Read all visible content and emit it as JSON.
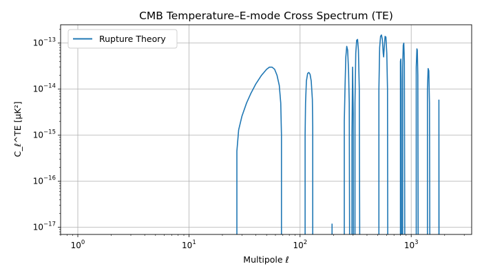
{
  "chart_data": {
    "type": "line",
    "title": "CMB Temperature–E-mode Cross Spectrum (TE)",
    "xlabel": "Multipole ℓ",
    "ylabel": "C_ℓ^TE [μK²]",
    "x_scale": "log",
    "y_scale": "log",
    "xlim": [
      0.7,
      3500
    ],
    "ylim": [
      7e-18,
      2.5e-13
    ],
    "grid": true,
    "legend_position": "top-left",
    "x_ticks": [
      {
        "value": 1,
        "base": "10",
        "exp": "0"
      },
      {
        "value": 10,
        "base": "10",
        "exp": "1"
      },
      {
        "value": 100,
        "base": "10",
        "exp": "2"
      },
      {
        "value": 1000,
        "base": "10",
        "exp": "3"
      }
    ],
    "y_ticks": [
      {
        "value": 1e-17,
        "base": "10",
        "exp": "−17"
      },
      {
        "value": 1e-16,
        "base": "10",
        "exp": "−16"
      },
      {
        "value": 1e-15,
        "base": "10",
        "exp": "−15"
      },
      {
        "value": 1e-14,
        "base": "10",
        "exp": "−14"
      },
      {
        "value": 1e-13,
        "base": "10",
        "exp": "−13"
      }
    ],
    "series": [
      {
        "name": "Rupture Theory",
        "color": "#1f77b4",
        "segments": [
          [
            [
              27,
              7e-18
            ],
            [
              27,
              4.5e-16
            ],
            [
              28,
              1.3e-15
            ],
            [
              30,
              2.6e-15
            ],
            [
              33,
              5e-15
            ],
            [
              36,
              8e-15
            ],
            [
              40,
              1.3e-14
            ],
            [
              45,
              2e-14
            ],
            [
              50,
              2.7e-14
            ],
            [
              53,
              3e-14
            ],
            [
              56,
              3e-14
            ],
            [
              59,
              2.7e-14
            ],
            [
              62,
              2e-14
            ],
            [
              65,
              1.2e-14
            ],
            [
              67,
              5e-15
            ],
            [
              68,
              1e-15
            ],
            [
              68,
              7e-18
            ]
          ],
          [
            [
              111,
              7e-18
            ],
            [
              111,
              1e-15
            ],
            [
              112,
              5e-15
            ],
            [
              114,
              1.5e-14
            ],
            [
              117,
              2.2e-14
            ],
            [
              120,
              2.3e-14
            ],
            [
              123,
              2.1e-14
            ],
            [
              126,
              1.5e-14
            ],
            [
              129,
              6e-15
            ],
            [
              130,
              1.5e-15
            ],
            [
              130,
              7e-18
            ]
          ],
          [
            [
              194,
              7e-18
            ],
            [
              194,
              1.2e-17
            ]
          ],
          [
            [
              250,
              7e-18
            ],
            [
              250,
              2e-15
            ],
            [
              254,
              1.2e-14
            ],
            [
              258,
              5e-14
            ],
            [
              263,
              8.5e-14
            ],
            [
              268,
              7e-14
            ],
            [
              273,
              2.5e-14
            ],
            [
              277,
              5e-15
            ],
            [
              279,
              7e-18
            ]
          ],
          [
            [
              293,
              7e-18
            ],
            [
              293,
              1e-15
            ],
            [
              297,
              3e-14
            ],
            [
              301,
              3e-15
            ],
            [
              302,
              7e-18
            ]
          ],
          [
            [
              312,
              7e-18
            ],
            [
              312,
              5e-15
            ],
            [
              317,
              6e-14
            ],
            [
              323,
              1.15e-13
            ],
            [
              329,
              1.2e-13
            ],
            [
              335,
              7e-14
            ],
            [
              341,
              1e-14
            ],
            [
              344,
              7e-18
            ]
          ],
          [
            [
              512,
              7e-18
            ],
            [
              512,
              1e-14
            ],
            [
              520,
              8e-14
            ],
            [
              530,
              1.4e-13
            ],
            [
              540,
              1.5e-13
            ],
            [
              550,
              1.2e-13
            ],
            [
              560,
              6e-14
            ],
            [
              565,
              5e-14
            ],
            [
              572,
              8e-14
            ],
            [
              582,
              1.4e-13
            ],
            [
              592,
              1.35e-13
            ],
            [
              603,
              6e-14
            ],
            [
              612,
              1e-14
            ],
            [
              615,
              7e-18
            ]
          ],
          [
            [
              800,
              7e-18
            ],
            [
              800,
              4e-14
            ],
            [
              807,
              4.5e-14
            ],
            [
              813,
              1.5e-14
            ],
            [
              818,
              7e-18
            ]
          ],
          [
            [
              838,
              7e-18
            ],
            [
              838,
              3e-14
            ],
            [
              848,
              9e-14
            ],
            [
              858,
              1e-13
            ],
            [
              868,
              4e-14
            ],
            [
              875,
              7e-18
            ]
          ],
          [
            [
              1110,
              7e-18
            ],
            [
              1110,
              3e-14
            ],
            [
              1125,
              7.5e-14
            ],
            [
              1135,
              7e-14
            ],
            [
              1147,
              2e-14
            ],
            [
              1155,
              7e-18
            ]
          ],
          [
            [
              1400,
              7e-18
            ],
            [
              1400,
              1e-14
            ],
            [
              1420,
              2.8e-14
            ],
            [
              1440,
              2.5e-14
            ],
            [
              1460,
              5e-15
            ],
            [
              1470,
              7e-18
            ]
          ],
          [
            [
              1775,
              7e-18
            ],
            [
              1775,
              5.8e-15
            ],
            [
              1780,
              7e-18
            ]
          ]
        ]
      }
    ]
  }
}
